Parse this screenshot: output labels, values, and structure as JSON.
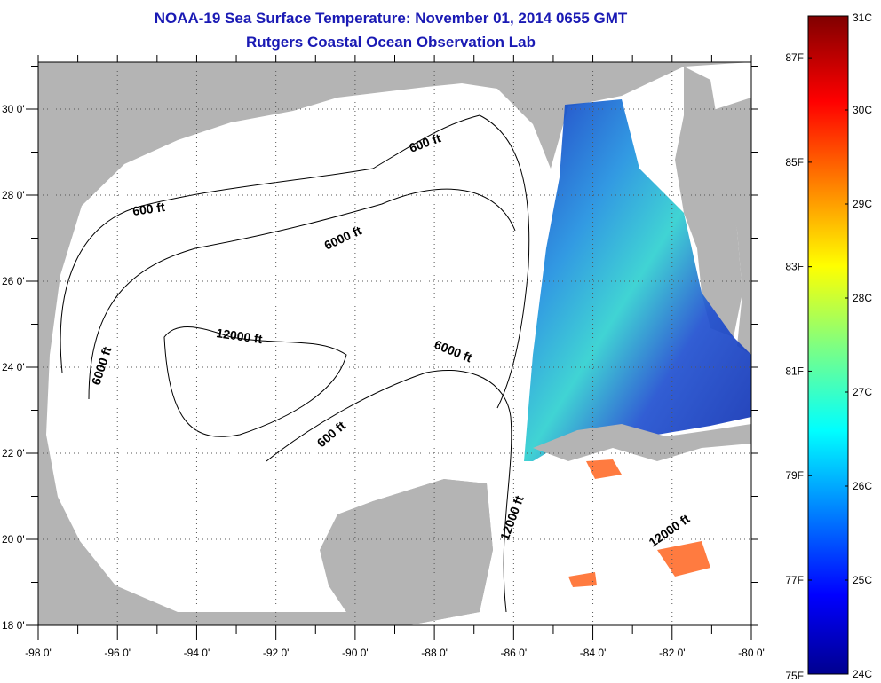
{
  "header": {
    "title": "NOAA-19 Sea Surface Temperature:  November 01, 2014 0655 GMT",
    "subtitle": "Rutgers Coastal Ocean Observation Lab"
  },
  "map": {
    "lon_range": [
      -98,
      -80
    ],
    "lat_range": [
      18,
      31
    ],
    "x_ticks": [
      "-98 0'",
      "-96 0'",
      "-94 0'",
      "-92 0'",
      "-90 0'",
      "-88 0'",
      "-86 0'",
      "-84 0'",
      "-82 0'",
      "-80 0'"
    ],
    "y_ticks": [
      "18 0'",
      "20 0'",
      "22 0'",
      "24 0'",
      "26 0'",
      "28 0'",
      "30 0'"
    ],
    "contour_labels": [
      "600 ft",
      "600 ft",
      "6000 ft",
      "6000 ft",
      "12000 ft",
      "6000 ft",
      "600 ft",
      "12000 ft",
      "12000 ft"
    ],
    "colors": {
      "land": "#b4b4b4",
      "ocean_no_data": "#ffffff",
      "title": "#1a1ab4"
    }
  },
  "colorbar": {
    "celsius_labels": [
      "31C",
      "30C",
      "29C",
      "28C",
      "27C",
      "26C",
      "25C",
      "24C"
    ],
    "fahrenheit_labels": [
      "87F",
      "85F",
      "83F",
      "81F",
      "79F",
      "77F",
      "75F"
    ],
    "range_c": [
      24,
      31
    ]
  }
}
